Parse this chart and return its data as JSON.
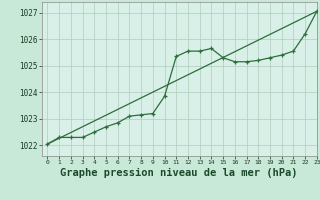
{
  "title": "Graphe pression niveau de la mer (hPa)",
  "background_color": "#c8e8d8",
  "plot_bg_color": "#d8f0e8",
  "grid_color": "#b0ccbc",
  "line_color": "#2d6e3a",
  "xlim": [
    -0.5,
    23
  ],
  "ylim": [
    1021.6,
    1027.4
  ],
  "yticks": [
    1022,
    1023,
    1024,
    1025,
    1026,
    1027
  ],
  "xticks": [
    0,
    1,
    2,
    3,
    4,
    5,
    6,
    7,
    8,
    9,
    10,
    11,
    12,
    13,
    14,
    15,
    16,
    17,
    18,
    19,
    20,
    21,
    22,
    23
  ],
  "hours": [
    0,
    1,
    2,
    3,
    4,
    5,
    6,
    7,
    8,
    9,
    10,
    11,
    12,
    13,
    14,
    15,
    16,
    17,
    18,
    19,
    20,
    21,
    22,
    23
  ],
  "pressure_curve": [
    1022.05,
    1022.3,
    1022.3,
    1022.3,
    1022.5,
    1022.7,
    1022.85,
    1023.1,
    1023.15,
    1023.2,
    1023.85,
    1025.35,
    1025.55,
    1025.55,
    1025.65,
    1025.3,
    1025.15,
    1025.15,
    1025.2,
    1025.3,
    1025.4,
    1025.55,
    1026.2,
    1027.05
  ],
  "trend_line_x": [
    0,
    23
  ],
  "trend_line_y": [
    1022.05,
    1027.05
  ]
}
